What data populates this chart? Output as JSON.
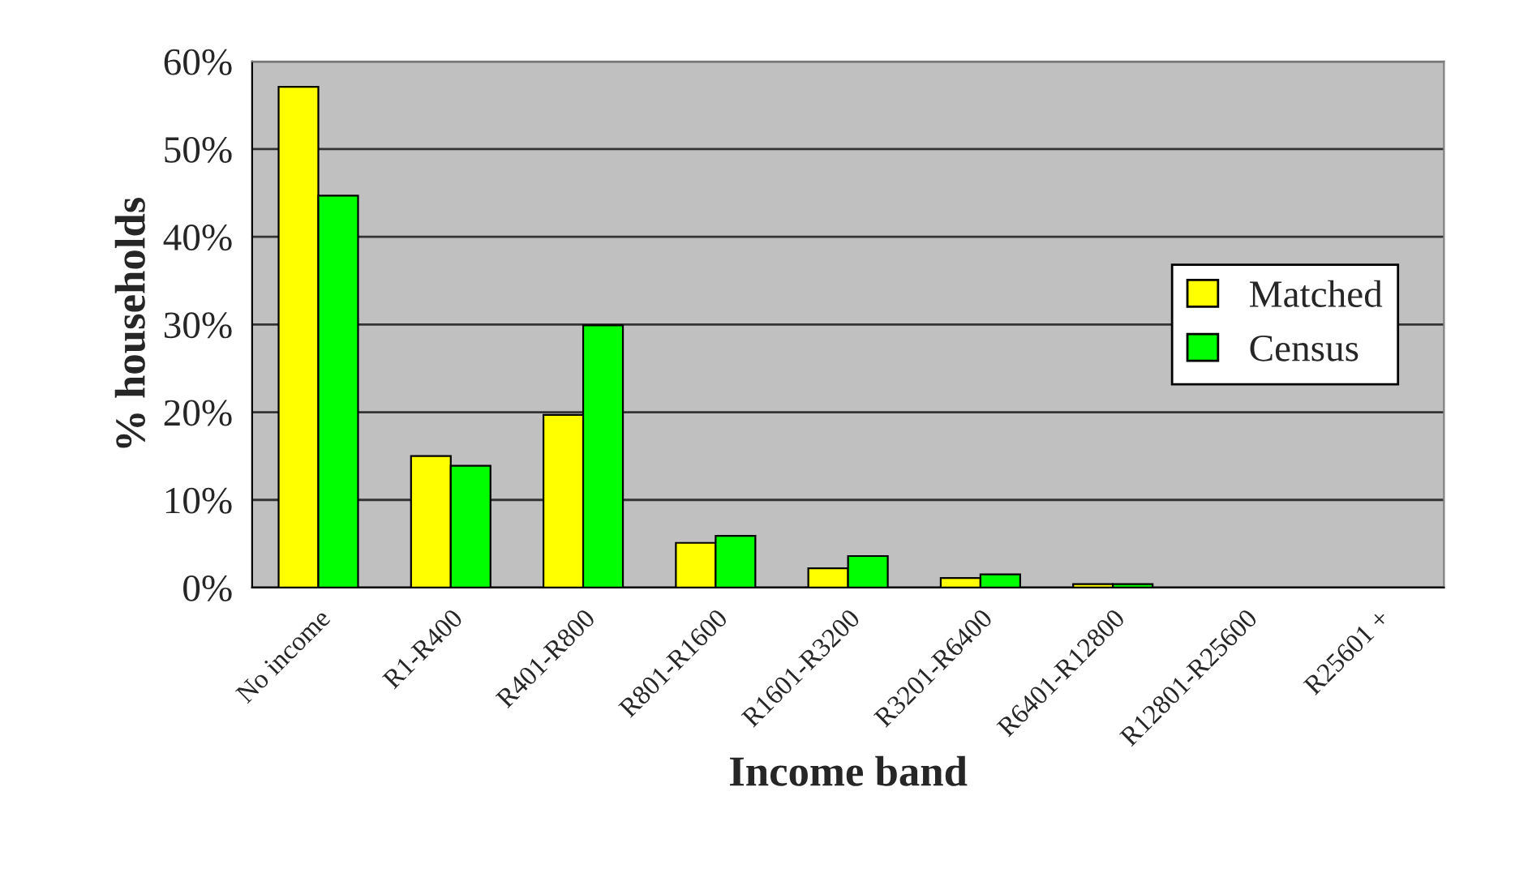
{
  "chart_data": {
    "type": "bar",
    "xlabel": "Income band",
    "ylabel": "% households",
    "categories": [
      "No income",
      "R1-R400",
      "R401-R800",
      "R801-R1600",
      "R1601-R3200",
      "R3201-R6400",
      "R6401-R12800",
      "R12801-R25600",
      "R25601 +"
    ],
    "series": [
      {
        "name": "Matched",
        "color": "#ffff00",
        "values": [
          57.1,
          15.0,
          19.7,
          5.1,
          2.2,
          1.1,
          0.4,
          null,
          null
        ]
      },
      {
        "name": "Census",
        "color": "#00ff00",
        "values": [
          44.7,
          13.9,
          29.9,
          5.9,
          3.6,
          1.5,
          0.4,
          null,
          null
        ]
      }
    ],
    "ylim": [
      0,
      60
    ],
    "yticks": [
      {
        "value": 0,
        "label": "0%"
      },
      {
        "value": 10,
        "label": "10%"
      },
      {
        "value": 20,
        "label": "20%"
      },
      {
        "value": 30,
        "label": "30%"
      },
      {
        "value": 40,
        "label": "40%"
      },
      {
        "value": 50,
        "label": "50%"
      },
      {
        "value": 60,
        "label": "60%"
      }
    ],
    "grid": "y",
    "legend": "right"
  }
}
